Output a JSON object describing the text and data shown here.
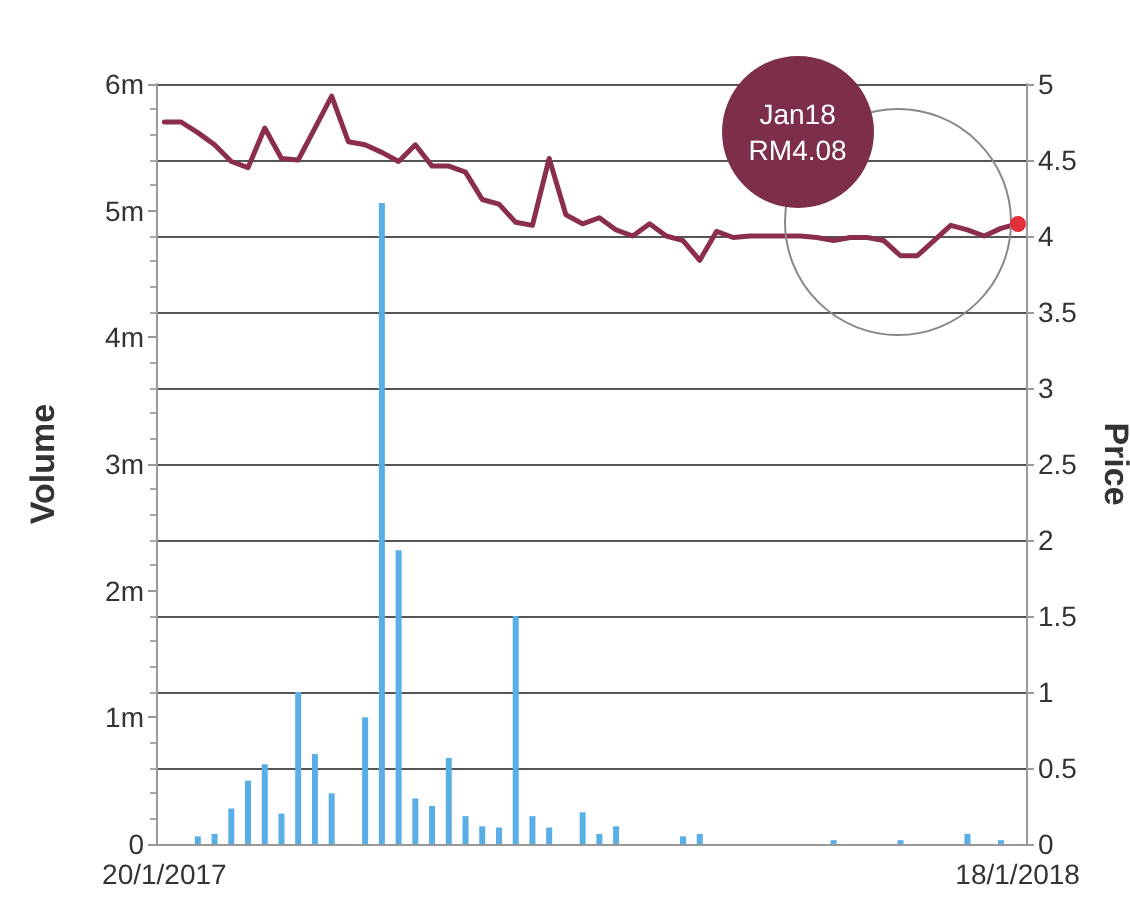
{
  "chart_data": {
    "type": "bar",
    "ylabel": "Volume",
    "y2label": "Price",
    "categories": [
      "20/1/2017",
      null,
      null,
      null,
      null,
      null,
      null,
      null,
      null,
      null,
      null,
      null,
      null,
      null,
      null,
      null,
      null,
      null,
      null,
      null,
      null,
      null,
      null,
      null,
      null,
      null,
      null,
      null,
      null,
      null,
      null,
      null,
      null,
      null,
      null,
      null,
      null,
      null,
      null,
      null,
      null,
      null,
      null,
      null,
      null,
      null,
      null,
      null,
      null,
      null,
      null,
      "18/1/2018"
    ],
    "series": [
      {
        "type": "bar",
        "color": "#5aaee6",
        "values": [
          null,
          null,
          0.06,
          0.08,
          0.28,
          0.5,
          0.63,
          0.24,
          1.2,
          0.71,
          0.4,
          null,
          1.0,
          5.06,
          2.32,
          0.36,
          0.3,
          0.68,
          0.22,
          0.14,
          0.13,
          1.8,
          0.22,
          0.13,
          null,
          0.25,
          0.08,
          0.14,
          null,
          null,
          null,
          0.06,
          0.08,
          null,
          null,
          null,
          null,
          null,
          null,
          null,
          0.03,
          null,
          null,
          null,
          0.03,
          null,
          null,
          null,
          0.08,
          null,
          0.03,
          null
        ]
      },
      {
        "type": "line",
        "axis": "y2",
        "color": "#8b2e4e",
        "values": [
          4.75,
          4.75,
          4.68,
          4.6,
          4.49,
          4.45,
          4.71,
          4.51,
          4.5,
          4.71,
          4.92,
          4.62,
          4.6,
          4.55,
          4.49,
          4.6,
          4.46,
          4.46,
          4.42,
          4.24,
          4.21,
          4.09,
          4.07,
          4.51,
          4.14,
          4.08,
          4.12,
          4.04,
          4.0,
          4.08,
          4.0,
          3.97,
          3.84,
          4.03,
          3.99,
          4.0,
          4.0,
          4.0,
          4.0,
          3.99,
          3.97,
          3.99,
          3.99,
          3.97,
          3.87,
          3.87,
          3.97,
          4.07,
          4.04,
          4.0,
          4.05,
          4.08
        ]
      }
    ],
    "ylim": [
      0,
      6
    ],
    "yticks": [
      0,
      {
        "value": 1,
        "label": "1m"
      },
      {
        "value": 2,
        "label": "2m"
      },
      {
        "value": 3,
        "label": "3m"
      },
      {
        "value": 4,
        "label": "4m"
      },
      {
        "value": 5,
        "label": "5m"
      },
      {
        "value": 6,
        "label": "6m"
      }
    ],
    "y2lim": [
      0,
      5
    ],
    "y2ticks": [
      0,
      0.5,
      1,
      1.5,
      2,
      2.5,
      3,
      3.5,
      4,
      4.5,
      5
    ],
    "annotations": [
      "Jan18\nRM4.08"
    ],
    "grid": true,
    "marker": "none",
    "line_style": "solid"
  }
}
